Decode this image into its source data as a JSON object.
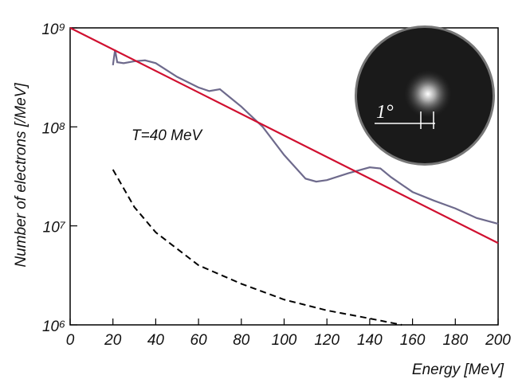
{
  "chart_data": {
    "type": "line",
    "x_label": "Energy [MeV]",
    "y_label": "Number of electrons [/MeV]",
    "annotation": "T=40 MeV",
    "inset_label": "1°",
    "log_y": true,
    "xlim": [
      0,
      200
    ],
    "xticks": [
      0,
      20,
      40,
      60,
      80,
      100,
      120,
      140,
      160,
      180,
      200
    ],
    "ylim": [
      1000000,
      1000000000
    ],
    "yticks": [
      {
        "value": 1000000,
        "label": "10⁶"
      },
      {
        "value": 10000000,
        "label": "10⁷"
      },
      {
        "value": 100000000,
        "label": "10⁸"
      },
      {
        "value": 1000000000,
        "label": "10⁹"
      }
    ],
    "series": [
      {
        "color": "#6e6a8c",
        "dash": false,
        "x": [
          20,
          21,
          22,
          25,
          30,
          35,
          40,
          50,
          60,
          65,
          70,
          75,
          80,
          90,
          100,
          110,
          115,
          120,
          130,
          140,
          145,
          150,
          160,
          170,
          180,
          190,
          200
        ],
        "values": [
          420000000,
          600000000,
          450000000,
          440000000,
          460000000,
          470000000,
          440000000,
          320000000,
          250000000,
          230000000,
          240000000,
          196000000,
          160000000,
          100000000,
          52000000,
          30000000,
          28000000,
          29000000,
          34000000,
          39000000,
          38000000,
          31000000,
          22000000,
          18000000,
          15000000,
          12000000,
          10500000
        ]
      },
      {
        "color": "#d01030",
        "dash": false,
        "x": [
          0,
          200
        ],
        "values": [
          1000000000,
          6700000
        ]
      },
      {
        "color": "#000000",
        "dash": true,
        "x": [
          20,
          30,
          40,
          60,
          80,
          100,
          120,
          140,
          155
        ],
        "values": [
          37000000,
          15500000,
          8600000,
          4000000,
          2600000,
          1800000,
          1400000,
          1160000,
          1000000
        ]
      }
    ]
  }
}
